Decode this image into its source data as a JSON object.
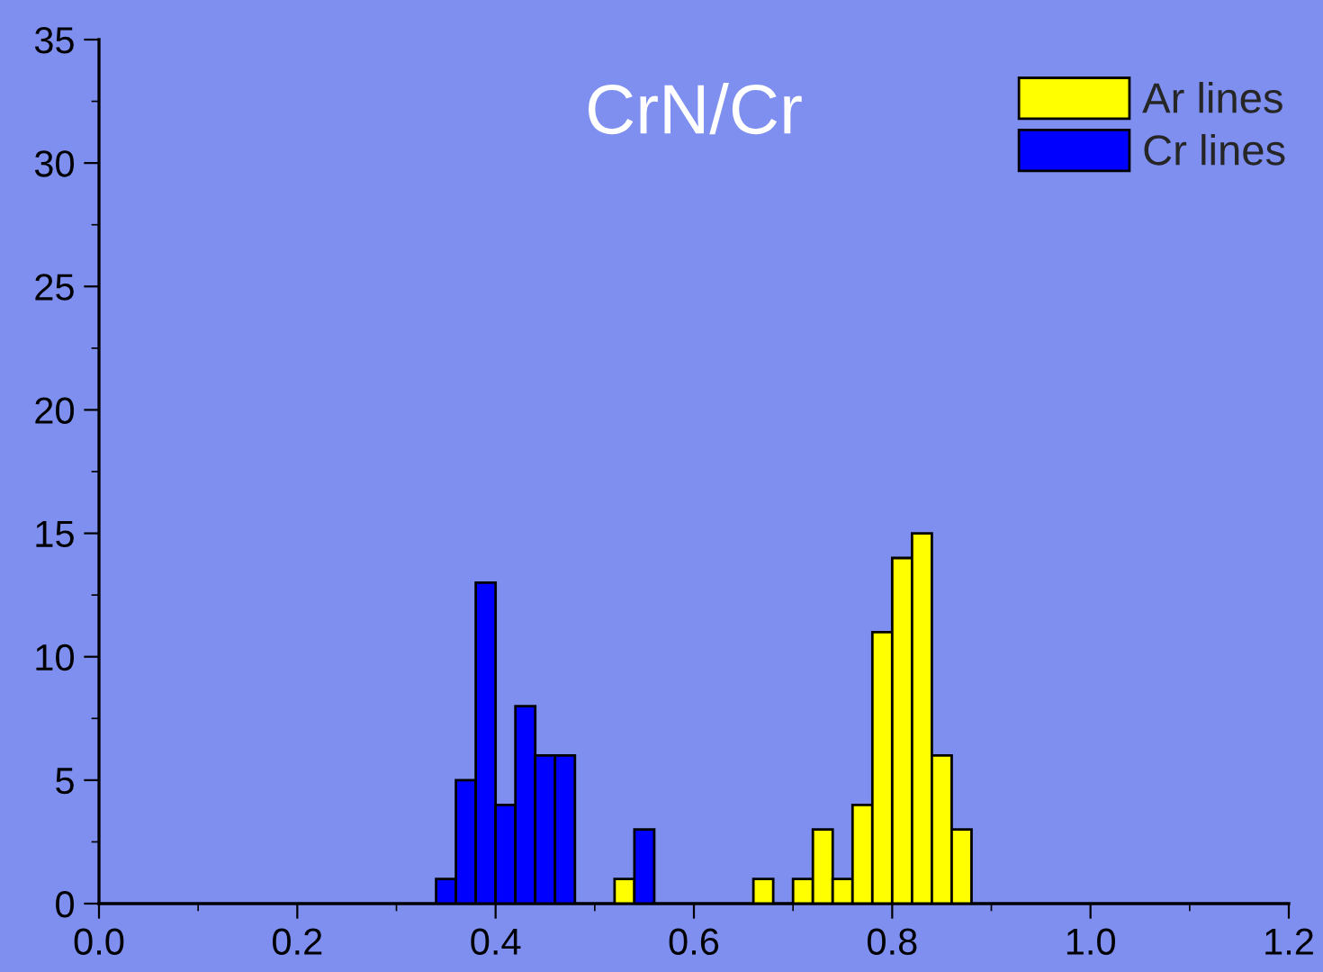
{
  "chart_data": {
    "type": "histogram",
    "title": "CrN/Cr",
    "bins": [
      0.34,
      0.36,
      0.38,
      0.4,
      0.42,
      0.44,
      0.46,
      0.48,
      0.5,
      0.52,
      0.54,
      0.56,
      0.58,
      0.6,
      0.62,
      0.64,
      0.66,
      0.68,
      0.7,
      0.72,
      0.74,
      0.76,
      0.78,
      0.8,
      0.82,
      0.84,
      0.86,
      0.88
    ],
    "series": [
      {
        "name": "Ar lines",
        "color": "#ffff00",
        "values": [
          0,
          0,
          0,
          0,
          0,
          0,
          0,
          0,
          0,
          1,
          0,
          0,
          0,
          0,
          0,
          0,
          1,
          0,
          1,
          3,
          1,
          4,
          11,
          14,
          15,
          6,
          3
        ]
      },
      {
        "name": "Cr lines",
        "color": "#0000ff",
        "values": [
          1,
          5,
          13,
          4,
          8,
          6,
          6,
          0,
          0,
          0,
          3,
          0,
          0,
          0,
          0,
          0,
          0,
          0,
          0,
          0,
          0,
          0,
          0,
          0,
          0,
          0,
          0
        ]
      }
    ],
    "xlim": [
      0,
      1.2
    ],
    "xticks": [
      {
        "value": 0,
        "label": "0.0"
      },
      0.2,
      0.4,
      0.6,
      0.8,
      {
        "value": 1,
        "label": "1.0"
      },
      1.2
    ],
    "ylim": [
      0,
      35
    ],
    "yticks": [
      0,
      5,
      10,
      15,
      20,
      25,
      30,
      35
    ],
    "grid": false,
    "legend": "top right"
  }
}
